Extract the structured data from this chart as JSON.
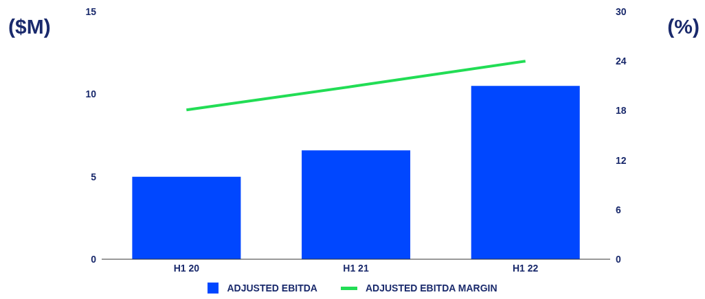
{
  "chart_data": {
    "type": "bar",
    "ylabel": "($M)",
    "y2label": "(%)",
    "categories": [
      "H1 20",
      "H1 21",
      "H1 22"
    ],
    "series": [
      {
        "name": "ADJUSTED EBITDA",
        "color": "#0047ff",
        "values": [
          5.0,
          6.6,
          10.5
        ]
      },
      {
        "name": "ADJUSTED EBITDA MARGIN",
        "type": "line",
        "axis": "y2",
        "color": "#22dd55",
        "values": [
          18.1,
          21,
          24
        ]
      }
    ],
    "ylim": [
      0,
      15
    ],
    "yticks": [
      0,
      5,
      10,
      15
    ],
    "y2lim": [
      0,
      30
    ],
    "y2ticks": [
      0,
      6,
      12,
      18,
      24,
      30
    ],
    "grid": false,
    "legend": "bottom",
    "marker": "none"
  }
}
